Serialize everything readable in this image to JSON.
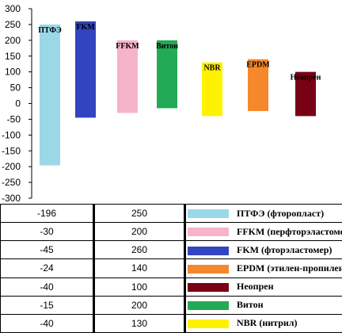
{
  "chart_data": {
    "type": "bar",
    "categories": [
      "ПТФЭ",
      "FKM",
      "FFKM",
      "Витон",
      "NBR",
      "EPDM",
      "Неопрен"
    ],
    "series": [
      {
        "values": [
          250,
          260,
          200,
          200,
          130,
          140,
          100
        ],
        "role": "max"
      },
      {
        "values": [
          -196,
          -45,
          -30,
          -15,
          -40,
          -24,
          -40
        ],
        "role": "min"
      }
    ],
    "colors": [
      "#9ad8e8",
      "#3344c0",
      "#f7b3cb",
      "#22aa55",
      "#fff200",
      "#f5882a",
      "#7a0016"
    ],
    "ylim": [
      -300,
      300
    ],
    "yticks": [
      "300",
      "250",
      "200",
      "150",
      "100",
      "50",
      "0",
      "-50",
      "-100",
      "-150",
      "-200",
      "-250",
      "-300"
    ],
    "grid": false,
    "legend_placement": "table-right"
  },
  "table": {
    "rows": [
      {
        "min": "-196",
        "max": "250",
        "color": "#9ad8e8",
        "label": "ПТФЭ (фторопласт)"
      },
      {
        "min": "-30",
        "max": "200",
        "color": "#f7b3cb",
        "label": "FFKM (перфторэластомер)"
      },
      {
        "min": "-45",
        "max": "260",
        "color": "#3344c0",
        "label": "FKM (фторэластомер)"
      },
      {
        "min": "-24",
        "max": "140",
        "color": "#f5882a",
        "label": "EPDM (этилен-пропилен)"
      },
      {
        "min": "-40",
        "max": "100",
        "color": "#7a0016",
        "label": "Неопрен"
      },
      {
        "min": "-15",
        "max": "200",
        "color": "#22aa55",
        "label": "Витон"
      },
      {
        "min": "-40",
        "max": "130",
        "color": "#fff200",
        "label": "NBR (нитрил)"
      }
    ]
  }
}
